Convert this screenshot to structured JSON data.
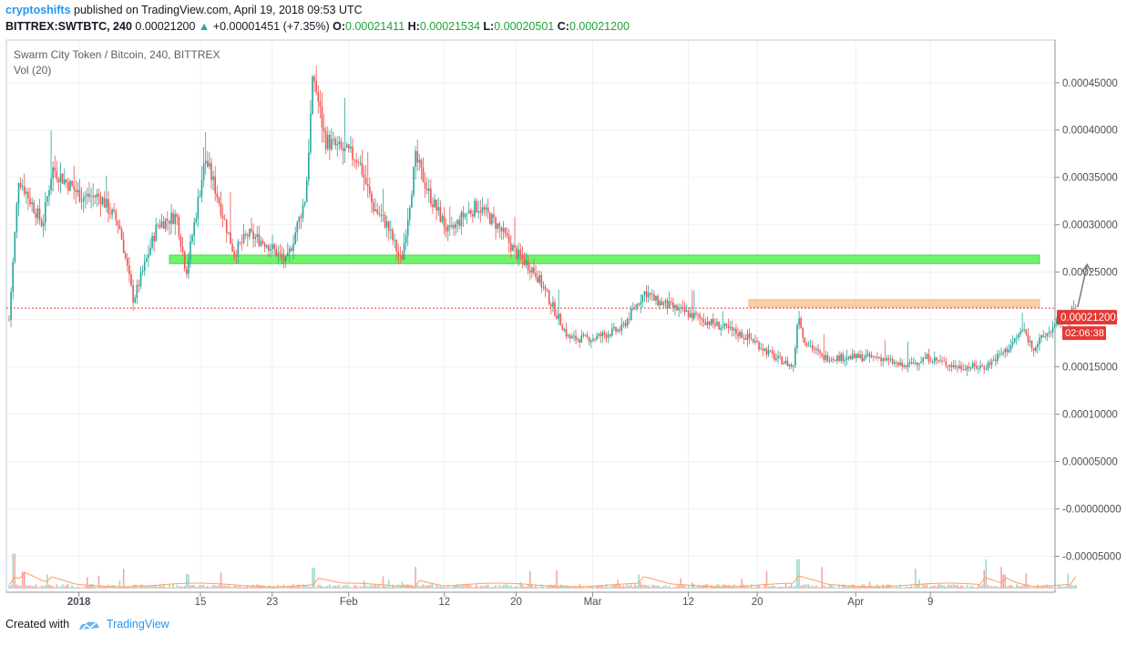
{
  "header": {
    "author": "cryptoshifts",
    "published_text": "published on TradingView.com, April 19, 2018 09:53 UTC",
    "symbol": "BITTREX:SWTBTC, 240",
    "last": "0.00021200",
    "change_arrow": "▲",
    "change": "+0.00001451 (+7.35%)",
    "open_label": "O:",
    "open": "0.00021411",
    "high_label": "H:",
    "high": "0.00021534",
    "low_label": "L:",
    "low": "0.00020501",
    "close_label": "C:",
    "close": "0.00021200"
  },
  "legend": {
    "title": "Swarm City Token / Bitcoin, 240, BITTREX",
    "volume": "Vol (20)"
  },
  "price_badge": {
    "value": "0.00021200",
    "countdown": "02:06:38"
  },
  "footer": {
    "created_with": "Created with",
    "brand": "TradingView"
  },
  "colors": {
    "up": "#26a69a",
    "down": "#ef5350",
    "support_zone": "#6ef36a",
    "resistance_zone": "#f7c79a",
    "last_price": "#e53935",
    "volume_ma": "#ff9f5a",
    "arrow": "#7a7a7a"
  },
  "chart_data": {
    "type": "candlestick",
    "title": "Swarm City Token / Bitcoin, 240, BITTREX",
    "x_ticks": [
      "2018",
      "15",
      "23",
      "Feb",
      "12",
      "20",
      "Mar",
      "12",
      "20",
      "Apr",
      "9"
    ],
    "y_ticks": [
      "0.00045000",
      "0.00040000",
      "0.00035000",
      "0.00030000",
      "0.00025000",
      "0.00020000",
      "0.00015000",
      "0.00010000",
      "0.00005000",
      "-0.00000000",
      "-0.00005000"
    ],
    "ylim": [
      -8.8e-05,
      0.000495
    ],
    "grid": true,
    "last_price": 0.000212,
    "price_path": [
      [
        0.0,
        0.0002
      ],
      [
        0.01,
        0.00035
      ],
      [
        0.035,
        0.0003
      ],
      [
        0.045,
        0.00036
      ],
      [
        0.075,
        0.00033
      ],
      [
        0.095,
        0.00033
      ],
      [
        0.115,
        0.0003
      ],
      [
        0.13,
        0.00022
      ],
      [
        0.155,
        0.0003
      ],
      [
        0.175,
        0.00031
      ],
      [
        0.185,
        0.00025
      ],
      [
        0.205,
        0.00037
      ],
      [
        0.215,
        0.00034
      ],
      [
        0.235,
        0.00027
      ],
      [
        0.25,
        0.00029
      ],
      [
        0.27,
        0.00028
      ],
      [
        0.29,
        0.00026
      ],
      [
        0.31,
        0.00033
      ],
      [
        0.318,
        0.00046
      ],
      [
        0.33,
        0.00039
      ],
      [
        0.345,
        0.00038
      ],
      [
        0.365,
        0.00037
      ],
      [
        0.38,
        0.00032
      ],
      [
        0.395,
        0.0003
      ],
      [
        0.41,
        0.00026
      ],
      [
        0.425,
        0.00037
      ],
      [
        0.44,
        0.00033
      ],
      [
        0.46,
        0.00029
      ],
      [
        0.475,
        0.00031
      ],
      [
        0.49,
        0.00032
      ],
      [
        0.51,
        0.0003
      ],
      [
        0.53,
        0.00027
      ],
      [
        0.55,
        0.00025
      ],
      [
        0.565,
        0.00022
      ],
      [
        0.585,
        0.00018
      ],
      [
        0.61,
        0.00018
      ],
      [
        0.64,
        0.00019
      ],
      [
        0.665,
        0.00023
      ],
      [
        0.675,
        0.00022
      ],
      [
        0.7,
        0.00021
      ],
      [
        0.725,
        0.0002
      ],
      [
        0.75,
        0.00019
      ],
      [
        0.775,
        0.00018
      ],
      [
        0.8,
        0.00016
      ],
      [
        0.82,
        0.00015
      ],
      [
        0.825,
        0.00021
      ],
      [
        0.83,
        0.00018
      ],
      [
        0.85,
        0.00016
      ],
      [
        0.88,
        0.00016
      ],
      [
        0.91,
        0.00016
      ],
      [
        0.935,
        0.00015
      ],
      [
        0.96,
        0.00016
      ],
      [
        0.99,
        0.00015
      ],
      [
        1.02,
        0.00015
      ],
      [
        1.045,
        0.00017
      ],
      [
        1.06,
        0.00019
      ],
      [
        1.07,
        0.00017
      ],
      [
        1.09,
        0.00019
      ],
      [
        1.115,
        0.000212
      ]
    ],
    "volume_spikes": [
      [
        0.005,
        3.7e-05
      ],
      [
        0.015,
        1.8e-05
      ],
      [
        0.04,
        1.5e-05
      ],
      [
        0.318,
        2.2e-05
      ],
      [
        0.425,
        2.3e-05
      ],
      [
        0.66,
        1.5e-05
      ],
      [
        0.825,
        3.1e-05
      ],
      [
        1.02,
        3.1e-05
      ],
      [
        1.04,
        1.5e-05
      ],
      [
        1.115,
        4e-06
      ]
    ],
    "annotations": [
      {
        "type": "zone",
        "label": "support",
        "from": 0.000259,
        "to": 0.000268
      },
      {
        "type": "zone",
        "label": "resistance",
        "from": 0.000213,
        "to": 0.000221
      },
      {
        "type": "hline",
        "label": "last price",
        "value": 0.000212
      },
      {
        "type": "arrow",
        "from": [
          1.117,
          0.000213
        ],
        "to": [
          1.127,
          0.000258
        ]
      }
    ]
  }
}
